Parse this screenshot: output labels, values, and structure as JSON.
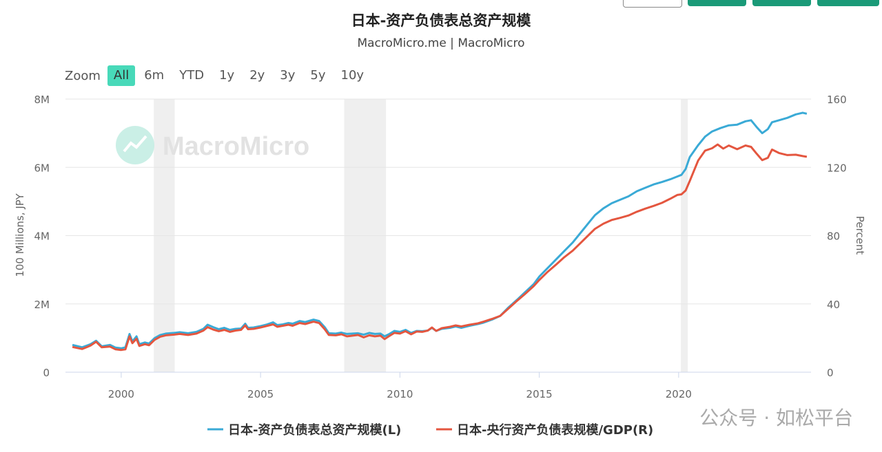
{
  "top_buttons": [
    "",
    "",
    "",
    ""
  ],
  "title": "日本-资产负债表总资产规模",
  "subtitle": "MacroMicro.me | MacroMicro",
  "zoom": {
    "label": "Zoom",
    "options": [
      "All",
      "6m",
      "YTD",
      "1y",
      "2y",
      "3y",
      "5y",
      "10y"
    ],
    "active": "All"
  },
  "watermark": "MacroMicro",
  "wechat_watermark": "公众号 · 如松平台",
  "colors": {
    "series_left": "#3aaad6",
    "series_right": "#e4563f",
    "recession": "#efefef",
    "grid": "#e6e6e6",
    "zoom_active": "#48d9b9",
    "top_button": "#1a9a78"
  },
  "chart_data": {
    "type": "line",
    "left_axis": {
      "label": "100 Millions, JPY",
      "ticks": [
        "0",
        "2M",
        "4M",
        "6M",
        "8M"
      ],
      "range": [
        0,
        8000000
      ]
    },
    "right_axis": {
      "label": "Percent",
      "ticks": [
        "0",
        "40",
        "80",
        "120",
        "160"
      ],
      "range": [
        0,
        160
      ]
    },
    "x_axis": {
      "ticks": [
        "2000",
        "2005",
        "2010",
        "2015",
        "2020"
      ],
      "range": [
        1998.0,
        2024.75
      ]
    },
    "grid": true,
    "legend_position": "bottom-center",
    "recession_bands": [
      [
        2001.17,
        2001.92
      ],
      [
        2008.0,
        2009.5
      ],
      [
        2020.08,
        2020.33
      ]
    ],
    "series": [
      {
        "name": "日本-资产负债表总资产规模(L)",
        "axis": "left",
        "points": [
          [
            1998.25,
            800000
          ],
          [
            1998.6,
            730000
          ],
          [
            1998.9,
            820000
          ],
          [
            1999.1,
            920000
          ],
          [
            1999.3,
            760000
          ],
          [
            1999.6,
            800000
          ],
          [
            1999.8,
            720000
          ],
          [
            2000.0,
            700000
          ],
          [
            2000.15,
            730000
          ],
          [
            2000.3,
            1120000
          ],
          [
            2000.4,
            900000
          ],
          [
            2000.55,
            1050000
          ],
          [
            2000.65,
            820000
          ],
          [
            2000.85,
            870000
          ],
          [
            2001.0,
            840000
          ],
          [
            2001.2,
            1000000
          ],
          [
            2001.4,
            1090000
          ],
          [
            2001.6,
            1130000
          ],
          [
            2001.9,
            1150000
          ],
          [
            2002.1,
            1170000
          ],
          [
            2002.4,
            1140000
          ],
          [
            2002.7,
            1180000
          ],
          [
            2002.95,
            1270000
          ],
          [
            2003.1,
            1390000
          ],
          [
            2003.3,
            1320000
          ],
          [
            2003.5,
            1260000
          ],
          [
            2003.7,
            1300000
          ],
          [
            2003.9,
            1240000
          ],
          [
            2004.1,
            1270000
          ],
          [
            2004.3,
            1280000
          ],
          [
            2004.45,
            1420000
          ],
          [
            2004.55,
            1300000
          ],
          [
            2004.75,
            1310000
          ],
          [
            2005.0,
            1350000
          ],
          [
            2005.2,
            1390000
          ],
          [
            2005.45,
            1460000
          ],
          [
            2005.6,
            1380000
          ],
          [
            2005.8,
            1400000
          ],
          [
            2006.0,
            1440000
          ],
          [
            2006.15,
            1420000
          ],
          [
            2006.4,
            1500000
          ],
          [
            2006.6,
            1470000
          ],
          [
            2006.9,
            1540000
          ],
          [
            2007.1,
            1500000
          ],
          [
            2007.3,
            1320000
          ],
          [
            2007.45,
            1140000
          ],
          [
            2007.7,
            1130000
          ],
          [
            2007.9,
            1160000
          ],
          [
            2008.1,
            1120000
          ],
          [
            2008.3,
            1130000
          ],
          [
            2008.5,
            1140000
          ],
          [
            2008.7,
            1100000
          ],
          [
            2008.9,
            1150000
          ],
          [
            2009.1,
            1120000
          ],
          [
            2009.3,
            1130000
          ],
          [
            2009.45,
            1050000
          ],
          [
            2009.6,
            1110000
          ],
          [
            2009.8,
            1210000
          ],
          [
            2010.0,
            1180000
          ],
          [
            2010.2,
            1240000
          ],
          [
            2010.4,
            1150000
          ],
          [
            2010.6,
            1210000
          ],
          [
            2010.8,
            1200000
          ],
          [
            2011.0,
            1220000
          ],
          [
            2011.15,
            1300000
          ],
          [
            2011.3,
            1210000
          ],
          [
            2011.5,
            1270000
          ],
          [
            2011.8,
            1300000
          ],
          [
            2012.0,
            1340000
          ],
          [
            2012.2,
            1300000
          ],
          [
            2012.5,
            1360000
          ],
          [
            2012.8,
            1410000
          ],
          [
            2013.0,
            1450000
          ],
          [
            2013.3,
            1540000
          ],
          [
            2013.6,
            1650000
          ],
          [
            2013.9,
            1900000
          ],
          [
            2014.2,
            2120000
          ],
          [
            2014.5,
            2350000
          ],
          [
            2014.8,
            2580000
          ],
          [
            2015.0,
            2800000
          ],
          [
            2015.3,
            3050000
          ],
          [
            2015.6,
            3300000
          ],
          [
            2015.9,
            3550000
          ],
          [
            2016.2,
            3800000
          ],
          [
            2016.5,
            4100000
          ],
          [
            2016.8,
            4400000
          ],
          [
            2017.0,
            4600000
          ],
          [
            2017.3,
            4800000
          ],
          [
            2017.6,
            4950000
          ],
          [
            2017.9,
            5050000
          ],
          [
            2018.2,
            5150000
          ],
          [
            2018.5,
            5300000
          ],
          [
            2018.8,
            5400000
          ],
          [
            2019.1,
            5500000
          ],
          [
            2019.4,
            5570000
          ],
          [
            2019.7,
            5650000
          ],
          [
            2019.95,
            5730000
          ],
          [
            2020.1,
            5780000
          ],
          [
            2020.25,
            5950000
          ],
          [
            2020.4,
            6300000
          ],
          [
            2020.7,
            6650000
          ],
          [
            2020.95,
            6900000
          ],
          [
            2021.2,
            7050000
          ],
          [
            2021.5,
            7150000
          ],
          [
            2021.8,
            7230000
          ],
          [
            2022.1,
            7250000
          ],
          [
            2022.4,
            7350000
          ],
          [
            2022.6,
            7380000
          ],
          [
            2022.8,
            7180000
          ],
          [
            2023.0,
            7000000
          ],
          [
            2023.2,
            7120000
          ],
          [
            2023.35,
            7320000
          ],
          [
            2023.6,
            7380000
          ],
          [
            2023.9,
            7450000
          ],
          [
            2024.2,
            7550000
          ],
          [
            2024.45,
            7600000
          ],
          [
            2024.6,
            7570000
          ]
        ]
      },
      {
        "name": "日本-央行资产负债表规模/GDP(R)",
        "axis": "right",
        "points": [
          [
            1998.25,
            14.8
          ],
          [
            1998.6,
            13.6
          ],
          [
            1998.9,
            15.6
          ],
          [
            1999.1,
            17.8
          ],
          [
            1999.3,
            14.6
          ],
          [
            1999.6,
            15.0
          ],
          [
            1999.8,
            13.4
          ],
          [
            2000.0,
            13.0
          ],
          [
            2000.15,
            13.4
          ],
          [
            2000.3,
            21.0
          ],
          [
            2000.4,
            17.0
          ],
          [
            2000.55,
            19.6
          ],
          [
            2000.65,
            15.4
          ],
          [
            2000.85,
            16.4
          ],
          [
            2001.0,
            15.8
          ],
          [
            2001.2,
            19.0
          ],
          [
            2001.4,
            20.8
          ],
          [
            2001.6,
            21.6
          ],
          [
            2001.9,
            22.0
          ],
          [
            2002.1,
            22.4
          ],
          [
            2002.4,
            21.8
          ],
          [
            2002.7,
            22.6
          ],
          [
            2002.95,
            24.4
          ],
          [
            2003.1,
            26.4
          ],
          [
            2003.3,
            25.0
          ],
          [
            2003.5,
            24.0
          ],
          [
            2003.7,
            24.8
          ],
          [
            2003.9,
            23.6
          ],
          [
            2004.1,
            24.4
          ],
          [
            2004.3,
            24.8
          ],
          [
            2004.45,
            27.4
          ],
          [
            2004.55,
            25.2
          ],
          [
            2004.75,
            25.4
          ],
          [
            2005.0,
            26.2
          ],
          [
            2005.2,
            27.0
          ],
          [
            2005.45,
            28.0
          ],
          [
            2005.6,
            26.6
          ],
          [
            2005.8,
            27.2
          ],
          [
            2006.0,
            27.8
          ],
          [
            2006.15,
            27.2
          ],
          [
            2006.4,
            28.8
          ],
          [
            2006.6,
            28.2
          ],
          [
            2006.9,
            29.6
          ],
          [
            2007.1,
            28.8
          ],
          [
            2007.3,
            25.2
          ],
          [
            2007.45,
            21.8
          ],
          [
            2007.7,
            21.6
          ],
          [
            2007.9,
            22.2
          ],
          [
            2008.1,
            21.0
          ],
          [
            2008.3,
            21.4
          ],
          [
            2008.5,
            21.8
          ],
          [
            2008.7,
            20.4
          ],
          [
            2008.9,
            21.6
          ],
          [
            2009.1,
            21.0
          ],
          [
            2009.3,
            21.4
          ],
          [
            2009.45,
            19.4
          ],
          [
            2009.6,
            21.0
          ],
          [
            2009.8,
            23.0
          ],
          [
            2010.0,
            22.6
          ],
          [
            2010.2,
            24.0
          ],
          [
            2010.4,
            22.2
          ],
          [
            2010.6,
            23.8
          ],
          [
            2010.8,
            23.6
          ],
          [
            2011.0,
            24.4
          ],
          [
            2011.15,
            26.2
          ],
          [
            2011.3,
            24.2
          ],
          [
            2011.5,
            25.8
          ],
          [
            2011.8,
            26.6
          ],
          [
            2012.0,
            27.4
          ],
          [
            2012.2,
            26.8
          ],
          [
            2012.5,
            27.8
          ],
          [
            2012.8,
            28.6
          ],
          [
            2013.0,
            29.6
          ],
          [
            2013.3,
            31.2
          ],
          [
            2013.6,
            33.0
          ],
          [
            2013.9,
            37.4
          ],
          [
            2014.2,
            41.8
          ],
          [
            2014.5,
            46.0
          ],
          [
            2014.8,
            50.4
          ],
          [
            2015.0,
            54.0
          ],
          [
            2015.3,
            58.8
          ],
          [
            2015.6,
            63.0
          ],
          [
            2015.9,
            67.4
          ],
          [
            2016.2,
            71.2
          ],
          [
            2016.5,
            76.0
          ],
          [
            2016.8,
            80.8
          ],
          [
            2017.0,
            84.0
          ],
          [
            2017.3,
            87.0
          ],
          [
            2017.6,
            89.2
          ],
          [
            2017.9,
            90.4
          ],
          [
            2018.2,
            91.8
          ],
          [
            2018.5,
            94.0
          ],
          [
            2018.8,
            95.8
          ],
          [
            2019.1,
            97.4
          ],
          [
            2019.4,
            99.2
          ],
          [
            2019.7,
            101.6
          ],
          [
            2019.95,
            103.8
          ],
          [
            2020.1,
            104.2
          ],
          [
            2020.25,
            106.4
          ],
          [
            2020.4,
            112.0
          ],
          [
            2020.7,
            124.0
          ],
          [
            2020.95,
            129.8
          ],
          [
            2021.2,
            131.2
          ],
          [
            2021.4,
            133.4
          ],
          [
            2021.6,
            131.0
          ],
          [
            2021.8,
            132.8
          ],
          [
            2022.1,
            130.6
          ],
          [
            2022.4,
            132.8
          ],
          [
            2022.6,
            132.0
          ],
          [
            2022.8,
            128.0
          ],
          [
            2023.0,
            124.2
          ],
          [
            2023.2,
            125.6
          ],
          [
            2023.35,
            130.4
          ],
          [
            2023.6,
            128.4
          ],
          [
            2023.9,
            127.2
          ],
          [
            2024.2,
            127.4
          ],
          [
            2024.45,
            126.6
          ],
          [
            2024.6,
            126.2
          ]
        ]
      }
    ]
  }
}
